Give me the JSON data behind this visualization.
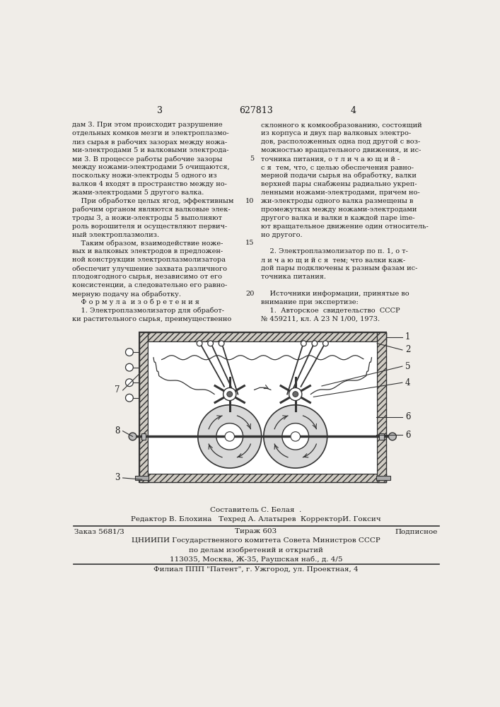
{
  "page_number_left": "3",
  "patent_number": "627813",
  "page_number_right": "4",
  "col1_lines": [
    "дам 3. При этом происходит разрушение",
    "отдельных комков мезги и электроплазмо-",
    "лиз сырья в рабочих зазорах между ножа-",
    "ми-электродами 5 и валковыми электрода-",
    "ми 3. В процессе работы рабочие зазоры",
    "между ножами-электродами 5 очищаются,",
    "поскольку ножи-электроды 5 одного из",
    "валков 4 входят в пространство между но-",
    "жами-электродами 5 другого валка.",
    "    При обработке целых ягод, эффективным",
    "рабочим органом являются валковые элек-",
    "троды 3, а ножи-электроды 5 выполняют",
    "роль ворошителя и осуществляют первич-",
    "ный электроплазмолиз.",
    "    Таким образом, взаимодействие ноже-",
    "вых и валковых электродов в предложен-",
    "ной конструкции электроплазмолизатора",
    "обеспечит улучшение захвата различного",
    "плодоягодного сырья, независимо от его",
    "консистенции, а следовательно его равно-",
    "мерную подачу на обработку.",
    "    Ф о р м у л а  и з о б р е т е н и я",
    "    1. Электроплазмолизатор для обработ-",
    "ки растительного сырья, преимущественно"
  ],
  "col2_lines": [
    "склонного к комкообразованию, состоящий",
    "из корпуса и двух пар валковых электро-",
    "дов, расположенных одна под другой с воз-",
    "можностью вращательного движения, и ис-",
    "точника питания, о т л и ч а ю щ и й -",
    "с я  тем, что, с целью обеспечения равно-",
    "мерной подачи сырья на обработку, валки",
    "верхней пары снабжены радиально укреп-",
    "ленными ножами-электродами, причем но-",
    "жи-электроды одного валка размещены в",
    "промежутках между ножами-электродами",
    "другого валка и валки в каждой паре ime-",
    "ют вращательное движение один относитель-",
    "но другого.",
    "",
    "    2. Электроплазмолизатор по п. 1, о т-",
    "л и ч а ю щ и й с я  тем; что валки каж-",
    "дой пары подключены к разным фазам ис-",
    "точника питания.",
    "",
    "    Источники информации, принятые во",
    "внимание при экспертизе:",
    "    1.  Авторское  свидетельство  СССР",
    "№ 459211, кл. А 23 N 1/00, 1973."
  ],
  "footer_line1": "Составитель С. Белая  .",
  "footer_line2": "Редактор В. Блохина   Техред А. Алатырев  КорректорИ. Гоксич",
  "footer_line3a_left": "Заказ 5681/3",
  "footer_line3a_mid": "Тираж 603",
  "footer_line3a_right": "Подписное",
  "footer_line4": "ЦНИИПИ Государственного комитета Совета Министров СССР",
  "footer_line5": "по делам изобретений и открытий",
  "footer_line6": "113035, Москва, Ж-35, Раушская наб., д. 4/5",
  "footer_line7": "Филиал ППП \"Патент\", г. Ужгород, ул. Проектная, 4",
  "bg_color": "#f0ede8",
  "text_color": "#1a1a1a",
  "line_numbers": {
    "5": 5,
    "10": 10,
    "15": 15,
    "20": 21
  }
}
